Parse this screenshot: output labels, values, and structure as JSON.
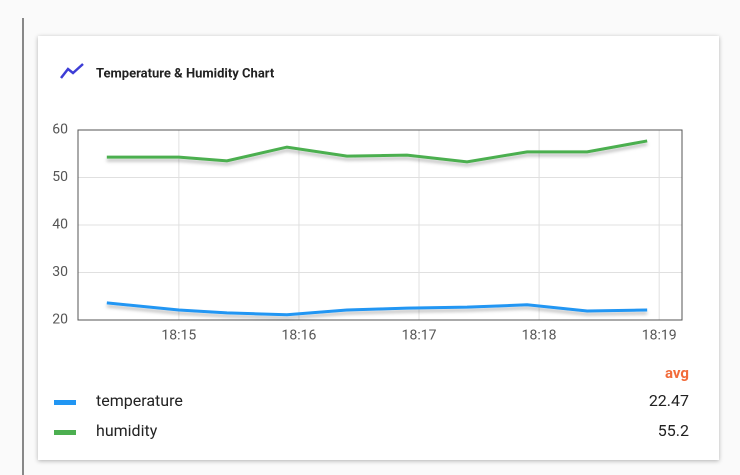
{
  "chart_data": {
    "type": "line",
    "title": "Temperature & Humidity Chart",
    "x": [
      1094.4,
      1095.0,
      1095.4,
      1095.9,
      1096.4,
      1096.9,
      1097.4,
      1097.9,
      1098.4,
      1098.9
    ],
    "series": [
      {
        "name": "temperature",
        "color": "#2196f3",
        "values": [
          23.6,
          22.1,
          21.5,
          21.1,
          22.1,
          22.5,
          22.7,
          23.2,
          21.9,
          22.1
        ],
        "avg": 22.47
      },
      {
        "name": "humidity",
        "color": "#4caf50",
        "values": [
          54.3,
          54.3,
          53.5,
          56.4,
          54.5,
          54.7,
          53.3,
          55.4,
          55.4,
          57.7
        ],
        "avg": 55.2
      }
    ],
    "avg_label": "avg",
    "xlim": [
      1094.16,
      1099.19
    ],
    "xticks": [
      {
        "value": 1095,
        "label": "18:15"
      },
      {
        "value": 1096,
        "label": "18:16"
      },
      {
        "value": 1097,
        "label": "18:17"
      },
      {
        "value": 1098,
        "label": "18:18"
      },
      {
        "value": 1099,
        "label": "18:19"
      }
    ],
    "ylim": [
      20,
      60
    ],
    "yticks": [
      20,
      30,
      40,
      50,
      60
    ],
    "grid": true
  }
}
